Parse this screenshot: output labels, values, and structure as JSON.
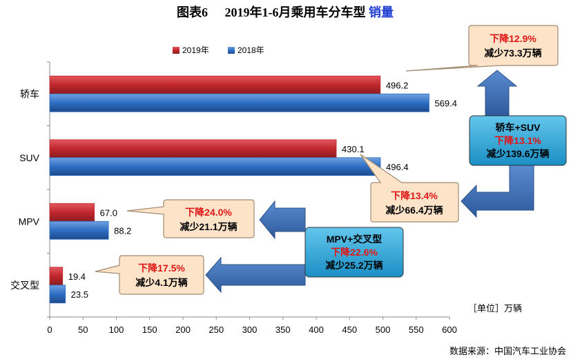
{
  "title": {
    "prefix": "图表6",
    "main": "2019年1-6月乘用车分车型",
    "highlight": "销量",
    "highlight_color": "#1f3fd0"
  },
  "legend": {
    "position": "top",
    "items": [
      "2019年",
      "2018年"
    ]
  },
  "unit_label": "［单位］万辆",
  "source": "数据来源：中国汽车工业协会",
  "colors": {
    "series_2019": "#c0272d",
    "series_2018": "#2e6ec3",
    "callout_fill": "#fde3c8",
    "callout_border": "#a08a70",
    "box_fill": "#2aa6d8",
    "arrow_fill": "#3f6fb2",
    "decrease_text": "#e01515"
  },
  "chart_data": {
    "type": "bar",
    "orientation": "horizontal",
    "categories": [
      "轿车",
      "SUV",
      "MPV",
      "交叉型"
    ],
    "series": [
      {
        "name": "2019年",
        "values": [
          496.2,
          430.1,
          67.0,
          19.4
        ]
      },
      {
        "name": "2018年",
        "values": [
          569.4,
          496.4,
          88.2,
          23.5
        ]
      }
    ],
    "value_labels": [
      [
        "496.2",
        "430.1",
        "67.0",
        "19.4"
      ],
      [
        "569.4",
        "496.4",
        "88.2",
        "23.5"
      ]
    ],
    "xlim": [
      0,
      600
    ],
    "xticks": [
      0,
      50,
      100,
      150,
      200,
      250,
      300,
      350,
      400,
      450,
      500,
      550,
      600
    ],
    "grid": false,
    "legend": "top"
  },
  "callouts": {
    "sedan": {
      "line1": "下降12.9%",
      "line2": "减少73.3万辆"
    },
    "suv": {
      "line1": "下降13.4%",
      "line2": "减少66.4万辆"
    },
    "mpv": {
      "line1": "下降24.0%",
      "line2": "减少21.1万辆"
    },
    "cross": {
      "line1": "下降17.5%",
      "line2": "减少4.1万辆"
    }
  },
  "summary_boxes": {
    "sedan_suv": {
      "line1": "轿车+SUV",
      "line2": "下降13.1%",
      "line3": "减少139.6万辆"
    },
    "mpv_cross": {
      "line1": "MPV+交叉型",
      "line2": "下降22.6%",
      "line3": "减少25.2万辆"
    }
  }
}
